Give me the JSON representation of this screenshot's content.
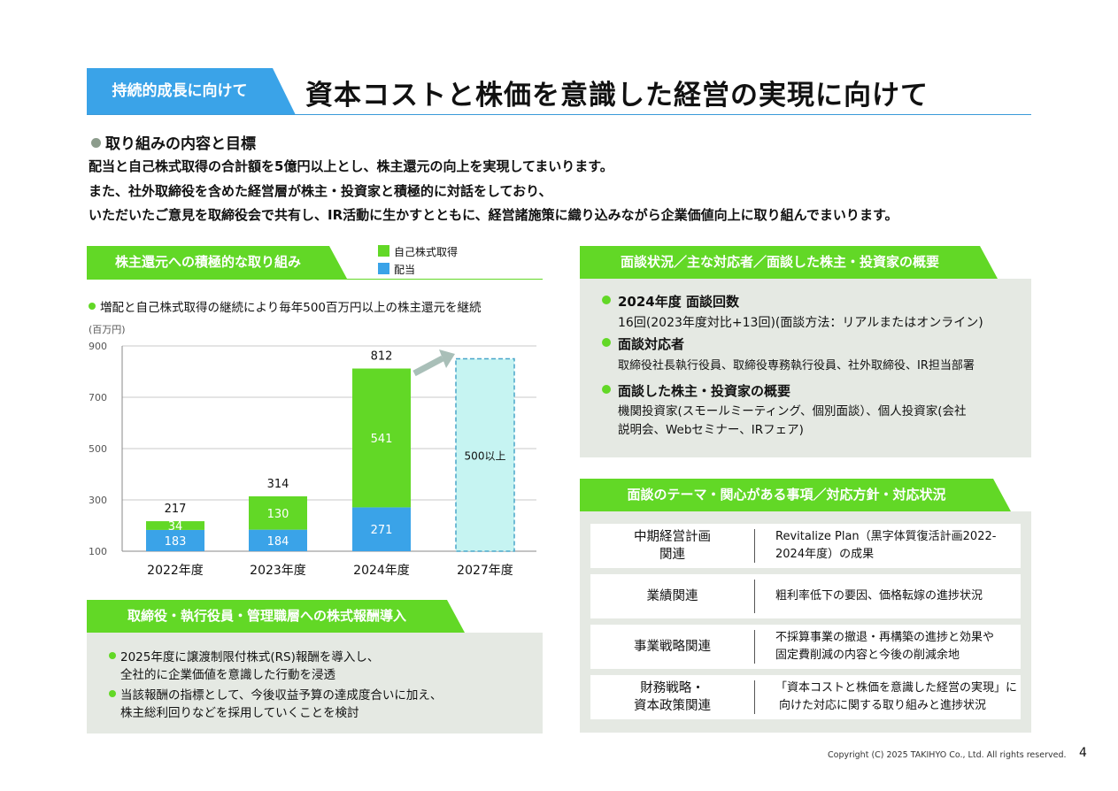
{
  "header": {
    "tag": "持続的成長に向けて",
    "title": "資本コストと株価を意識した経営の実現に向けて"
  },
  "intro": {
    "heading": "取り組みの内容と目標",
    "lines": [
      "配当と自己株式取得の合計額を5億円以上とし、株主還元の向上を実現してまいります。",
      "また、社外取締役を含めた経営層が株主・投資家と積極的に対話をしており、",
      "いただいたご意見を取締役会で共有し、IR活動に生かすとともに、経営諸施策に織り込みながら企業価値向上に取り組んでまいります。"
    ]
  },
  "returns": {
    "banner": "株主還元への積極的な取り組み",
    "bullet": "増配と自己株式取得の継続により毎年500百万円以上の株主還元を継続"
  },
  "colors": {
    "green": "#62d826",
    "blue": "#3aa3e8",
    "tag_blue": "#3aa3e8",
    "box_gray": "#e5e9e3",
    "target_fill": "#c6f4f2",
    "target_border": "#4aa6c9"
  },
  "chart_data": {
    "type": "bar",
    "stacked": true,
    "ylabel": "(百万円)",
    "ylim": [
      100,
      900
    ],
    "yticks": [
      100,
      300,
      500,
      700,
      900
    ],
    "categories": [
      "2022年度",
      "2023年度",
      "2024年度",
      "2027年度"
    ],
    "series": [
      {
        "name": "配当",
        "values": [
          183,
          184,
          271,
          null
        ],
        "color": "#3aa3e8"
      },
      {
        "name": "自己株式取得",
        "values": [
          34,
          130,
          541,
          null
        ],
        "color": "#62d826"
      }
    ],
    "totals": [
      217,
      314,
      812,
      null
    ],
    "target": {
      "category": "2027年度",
      "value": 850,
      "label": "500以上"
    },
    "legend": [
      "自己株式取得",
      "配当"
    ],
    "legend_position": "top-right",
    "grid": true
  },
  "remuneration": {
    "banner": "取締役・執行役員・管理職層への株式報酬導入",
    "items": [
      [
        "2025年度に譲渡制限付株式(RS)報酬を導入し、",
        "全社的に企業価値を意識した行動を浸透"
      ],
      [
        "当該報酬の指標として、今後収益予算の達成度合いに加え、",
        "株主総利回りなどを採用していくことを検討"
      ]
    ]
  },
  "meetings": {
    "banner": "面談状況／主な対応者／面談した株主・投資家の概要",
    "items": [
      {
        "title": "2024年度 面談回数",
        "lines": [
          "16回(2023年度対比+13回)(面談方法：リアルまたはオンライン)"
        ]
      },
      {
        "title": "面談対応者",
        "lines": [
          "取締役社長執行役員、取締役専務執行役員、社外取締役、IR担当部署"
        ]
      },
      {
        "title": "面談した株主・投資家の概要",
        "lines": [
          "機関投資家(スモールミーティング、個別面談）、個人投資家(会社",
          "説明会、Webセミナー、IRフェア)"
        ]
      }
    ]
  },
  "themes": {
    "banner": "面談のテーマ・関心がある事項／対応方針・対応状況",
    "rows": [
      {
        "topic": [
          "中期経営計画",
          "関連"
        ],
        "detail": [
          "Revitalize Plan（黒字体質復活計画2022-",
          "2024年度）の成果"
        ]
      },
      {
        "topic": [
          "業績関連"
        ],
        "detail": [
          "粗利率低下の要因、価格転嫁の進捗状況"
        ]
      },
      {
        "topic": [
          "事業戦略関連"
        ],
        "detail": [
          "不採算事業の撤退・再構築の進捗と効果や",
          "固定費削減の内容と今後の削減余地"
        ]
      },
      {
        "topic": [
          "財務戦略・",
          "資本政策関連"
        ],
        "detail": [
          "「資本コストと株価を意識した経営の実現」に",
          "向けた対応に関する取り組みと進捗状況"
        ]
      }
    ]
  },
  "footer": {
    "copyright": "Copyright (C) 2025 TAKIHYO Co., Ltd. All rights reserved.",
    "page": "4"
  }
}
